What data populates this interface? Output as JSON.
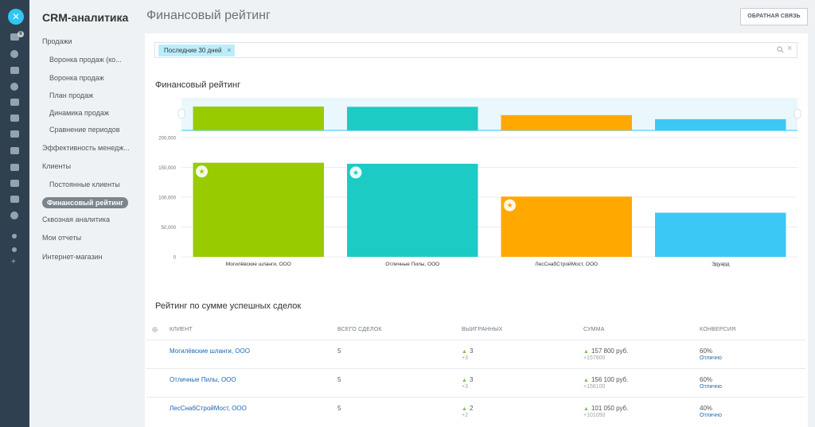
{
  "sidebar": {
    "badge_count": "6",
    "title": "CRM-аналитика",
    "items": [
      {
        "label": "Продажи",
        "level": 0
      },
      {
        "label": "Воронка продаж (ко...",
        "level": 1
      },
      {
        "label": "Воронка продаж",
        "level": 1
      },
      {
        "label": "План продаж",
        "level": 1
      },
      {
        "label": "Динамика продаж",
        "level": 1
      },
      {
        "label": "Сравнение периодов",
        "level": 1
      },
      {
        "label": "Эффективность менедж...",
        "level": 0
      },
      {
        "label": "Клиенты",
        "level": 0
      },
      {
        "label": "Постоянные клиенты",
        "level": 1
      },
      {
        "label": "Финансовый рейтинг",
        "level": 1,
        "active": true
      },
      {
        "label": "Сквозная аналитика",
        "level": 0
      },
      {
        "label": "Мои отчеты",
        "level": 0
      },
      {
        "label": "Интернет-магазин",
        "level": 0
      }
    ]
  },
  "header": {
    "title": "Финансовый рейтинг",
    "feedback_label": "ОБРАТНАЯ СВЯЗЬ"
  },
  "filter": {
    "tag_label": "Последние 30 дней"
  },
  "chart_section_title": "Финансовый рейтинг",
  "chart_data": {
    "type": "bar",
    "categories": [
      "Могилёвские шланги, ООО",
      "Отличные Пилы, ООО",
      "ЛесСнабСтройМост, ООО",
      "Эдуард"
    ],
    "values": [
      157800,
      156100,
      101050,
      74000
    ],
    "colors": [
      "#98cb00",
      "#1ccbc4",
      "#ffa900",
      "#3bc8f5"
    ],
    "starred": [
      true,
      true,
      true,
      false
    ],
    "ylim": [
      0,
      200000
    ],
    "yticks": [
      "0",
      "50,000",
      "100,000",
      "150,000",
      "200,000"
    ],
    "title": "",
    "xlabel": "",
    "ylabel": ""
  },
  "table": {
    "title": "Рейтинг по сумме успешных сделок",
    "headers": [
      "КЛИЕНТ",
      "ВСЕГО СДЕЛОК",
      "ВЫИГРАННЫХ",
      "СУММА",
      "КОНВЕРСИЯ"
    ],
    "rows": [
      {
        "client": "Могилёвские шланги, ООО",
        "total": "5",
        "won": "3",
        "won_delta": "+3",
        "sum": "157 800 руб.",
        "sum_delta": "+157800",
        "conversion": "60%",
        "rating": "Отлично"
      },
      {
        "client": "Отличные Пилы, ООО",
        "total": "5",
        "won": "3",
        "won_delta": "+3",
        "sum": "156 100 руб.",
        "sum_delta": "+156100",
        "conversion": "60%",
        "rating": "Отлично"
      },
      {
        "client": "ЛесСнабСтройМост, ООО",
        "total": "5",
        "won": "2",
        "won_delta": "+2",
        "sum": "101 050 руб.",
        "sum_delta": "+101050",
        "conversion": "40%",
        "rating": "Отлично"
      }
    ]
  }
}
